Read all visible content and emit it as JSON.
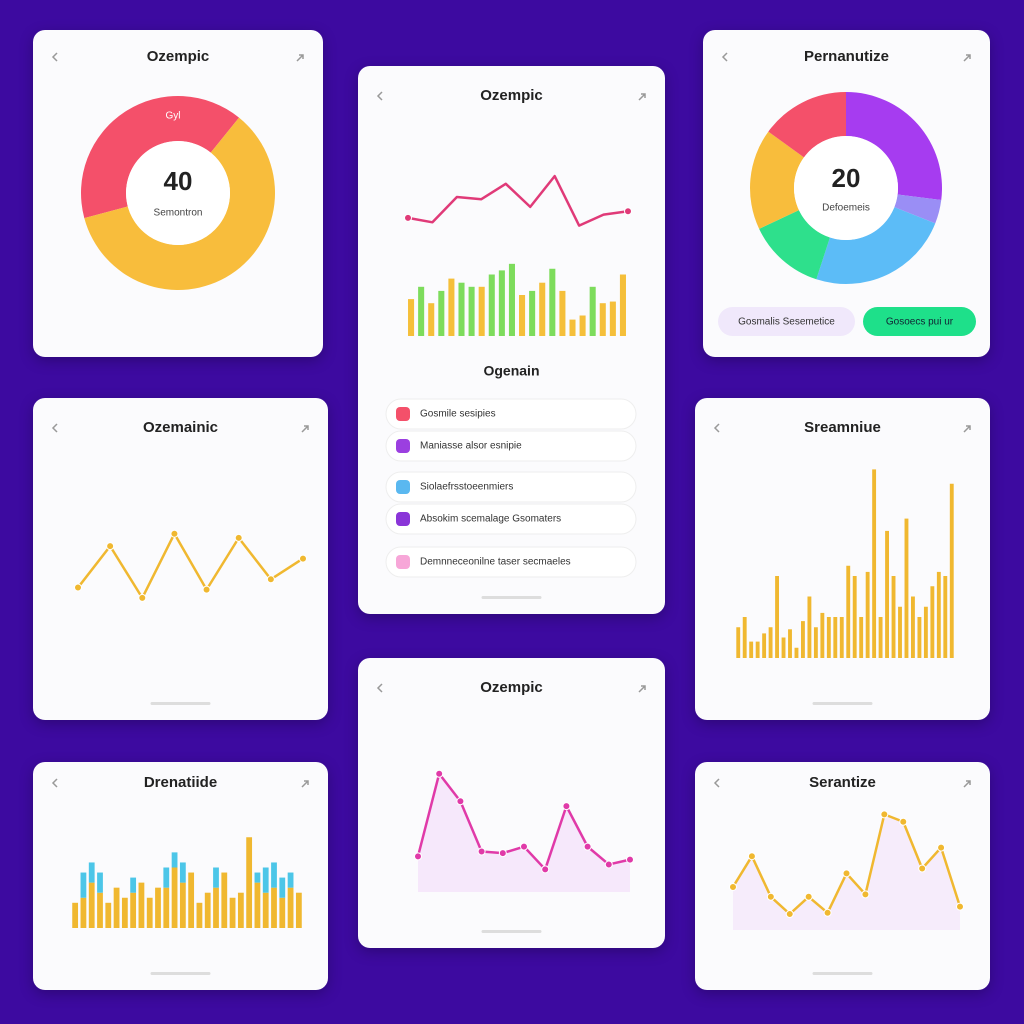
{
  "cards": [
    {
      "title": "Ozempic",
      "charts": [
        {
          "type": "donut",
          "values": [
            40,
            60
          ],
          "colors": [
            "#f4506a",
            "#f8bd3c"
          ],
          "center_value": 40,
          "center_label": "Semontron",
          "segment_label": "Gyl"
        }
      ]
    },
    {
      "title": "Ozempic",
      "charts": [
        {
          "type": "line",
          "color": "#e03a78",
          "markers": false,
          "area": false,
          "ylim": [
            0,
            100
          ],
          "values": [
            21,
            17,
            40,
            38,
            52,
            31,
            59,
            14,
            24,
            27
          ]
        },
        {
          "type": "bar",
          "ylim": [
            0,
            100
          ],
          "values": [
            45,
            60,
            40,
            55,
            70,
            65,
            60,
            60,
            75,
            80,
            88,
            50,
            55,
            65,
            82,
            55,
            20,
            25,
            60,
            40,
            42,
            75
          ],
          "colors": [
            "#f5bf3a",
            "#7ddc5c",
            "#f5bf3a",
            "#7ddc5c",
            "#f5bf3a",
            "#7ddc5c",
            "#7ddc5c",
            "#f5bf3a",
            "#7ddc5c",
            "#7ddc5c",
            "#7ddc5c",
            "#f5bf3a",
            "#7ddc5c",
            "#f5bf3a",
            "#7ddc5c",
            "#f5bf3a",
            "#f5bf3a",
            "#f5bf3a",
            "#7ddc5c",
            "#f5bf3a",
            "#f5bf3a",
            "#f5bf3a"
          ]
        }
      ],
      "section_title": "Ogenain",
      "items": [
        {
          "label": "Gosmile sesipies",
          "color": "#f4506a"
        },
        {
          "label": "Maniasse alsor esnipie",
          "color": "#9b3fe0"
        },
        {
          "label": "Siolaefrsstoeenmiers",
          "color": "#5ab8f0"
        },
        {
          "label": "Absokim scemalage Gsomaters",
          "color": "#8a35d8"
        },
        {
          "label": "Demnneceonilne taser secmaeles",
          "color": "#f7a6d8"
        }
      ]
    },
    {
      "title": "Pernanutize",
      "charts": [
        {
          "type": "donut",
          "values": [
            27,
            4,
            24,
            13,
            17,
            15
          ],
          "colors": [
            "#a63cf0",
            "#9a8ef5",
            "#5cbcf7",
            "#2ee08c",
            "#f8bd3c",
            "#f4506a"
          ],
          "center_value": 20,
          "center_label": "Defoemeis"
        }
      ],
      "buttons": [
        {
          "label": "Gosmalis Sesemetice",
          "color": "#f0e8fb",
          "text_color": "#333"
        },
        {
          "label": "Gosoecs pui ur",
          "color": "#1ee08a",
          "text_color": "#123"
        }
      ]
    },
    {
      "title": "Ozemainic",
      "charts": [
        {
          "type": "line",
          "color": "#f0b830",
          "markers": true,
          "area": false,
          "ylim": [
            0,
            100
          ],
          "values": [
            35,
            55,
            30,
            61,
            34,
            59,
            39,
            49
          ]
        }
      ]
    },
    {
      "title": "Sreamniue",
      "charts": [
        {
          "type": "bar",
          "ylim": [
            0,
            100
          ],
          "color": "#f0b830",
          "values": [
            15,
            20,
            8,
            8,
            12,
            15,
            40,
            10,
            14,
            5,
            18,
            30,
            15,
            22,
            20,
            20,
            20,
            45,
            40,
            20,
            42,
            92,
            20,
            62,
            40,
            25,
            68,
            30,
            20,
            25,
            35,
            42,
            40,
            85
          ]
        }
      ]
    },
    {
      "title": "Ozempic",
      "charts": [
        {
          "type": "line",
          "color": "#e03aa8",
          "markers": true,
          "area": true,
          "area_color": "#f6e8fb",
          "ylim": [
            0,
            100
          ],
          "values": [
            22,
            73,
            56,
            25,
            24,
            28,
            14,
            53,
            28,
            17,
            20
          ]
        }
      ]
    },
    {
      "title": "Drenatiide",
      "charts": [
        {
          "type": "stacked_bar",
          "ylim": [
            0,
            120
          ],
          "series": [
            {
              "color": "#f0b830",
              "values": [
                25,
                30,
                45,
                35,
                25,
                40,
                30,
                35,
                45,
                30,
                40,
                40,
                60,
                45,
                55,
                25,
                35,
                40,
                55,
                30,
                35,
                90,
                45,
                35,
                40,
                30,
                40,
                35
              ]
            },
            {
              "color": "#4cc6e8",
              "values": [
                0,
                25,
                20,
                20,
                0,
                0,
                0,
                15,
                0,
                0,
                0,
                20,
                15,
                20,
                0,
                0,
                0,
                20,
                0,
                0,
                0,
                0,
                10,
                25,
                25,
                20,
                15,
                0
              ]
            }
          ]
        }
      ]
    },
    {
      "title": "Serantize",
      "charts": [
        {
          "type": "line",
          "color": "#f0b830",
          "markers": true,
          "area": true,
          "area_color": "#f6ecfb",
          "ylim": [
            0,
            100
          ],
          "values": [
            35,
            60,
            27,
            13,
            27,
            14,
            46,
            29,
            94,
            88,
            50,
            67,
            19
          ]
        }
      ]
    }
  ]
}
